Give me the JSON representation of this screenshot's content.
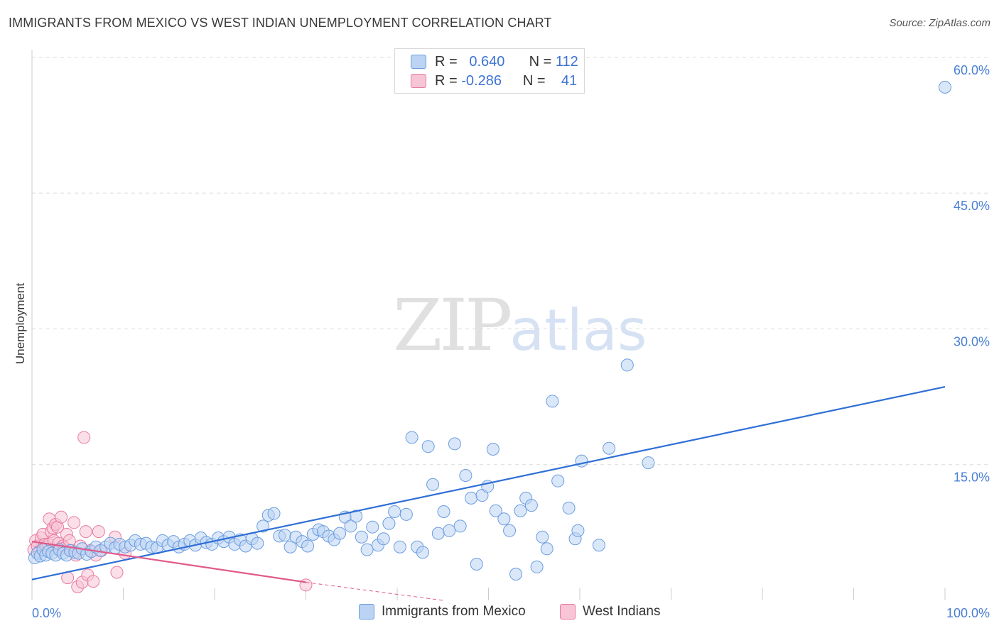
{
  "title": "IMMIGRANTS FROM MEXICO VS WEST INDIAN UNEMPLOYMENT CORRELATION CHART",
  "source": "Source: ZipAtlas.com",
  "watermark": {
    "zip": "ZIP",
    "atlas": "atlas"
  },
  "legend": {
    "rows": [
      {
        "r_label": "R =",
        "r_value": "0.640",
        "n_label": "N =",
        "n_value": "112"
      },
      {
        "r_label": "R =",
        "r_value": "-0.286",
        "n_label": "N =",
        "n_value": "41"
      }
    ]
  },
  "bottom_legend": {
    "mexico": "Immigrants from Mexico",
    "west_indians": "West Indians"
  },
  "colors": {
    "blue": "#6b9de0",
    "blue_fill": "#bcd3f3",
    "pink": "#e97aa0",
    "pink_fill": "#f7c5d6",
    "blue_line": "#2f6fd6",
    "pink_line": "#e05a8a"
  },
  "chart_data": {
    "type": "scatter",
    "xlabel": "",
    "ylabel": "Unemployment",
    "xlim": [
      0,
      100
    ],
    "ylim": [
      0,
      63
    ],
    "x_tick_labels": [
      "0.0%",
      "100.0%"
    ],
    "y_ticks": [
      15,
      30,
      45,
      60
    ],
    "y_tick_labels": [
      "15.0%",
      "30.0%",
      "45.0%",
      "60.0%"
    ],
    "series": [
      {
        "name": "Immigrants from Mexico",
        "trend": [
          [
            0,
            2.3
          ],
          [
            100,
            23.6
          ]
        ],
        "points": [
          [
            0.3,
            4.7
          ],
          [
            0.6,
            5.2
          ],
          [
            0.9,
            4.9
          ],
          [
            1.2,
            5.6
          ],
          [
            1.5,
            5.0
          ],
          [
            1.8,
            5.4
          ],
          [
            2.2,
            5.2
          ],
          [
            2.6,
            5.0
          ],
          [
            3.0,
            5.6
          ],
          [
            3.4,
            5.2
          ],
          [
            3.8,
            5.0
          ],
          [
            4.2,
            5.5
          ],
          [
            4.7,
            5.3
          ],
          [
            5.1,
            5.2
          ],
          [
            5.5,
            5.7
          ],
          [
            6.0,
            5.1
          ],
          [
            6.5,
            5.4
          ],
          [
            7.0,
            5.9
          ],
          [
            7.5,
            5.5
          ],
          [
            8.1,
            5.9
          ],
          [
            8.6,
            6.3
          ],
          [
            9.1,
            5.8
          ],
          [
            9.6,
            6.2
          ],
          [
            10.2,
            5.9
          ],
          [
            10.8,
            6.1
          ],
          [
            11.3,
            6.6
          ],
          [
            11.9,
            6.2
          ],
          [
            12.5,
            6.3
          ],
          [
            13.1,
            5.9
          ],
          [
            13.7,
            5.8
          ],
          [
            14.3,
            6.6
          ],
          [
            14.9,
            6.1
          ],
          [
            15.5,
            6.5
          ],
          [
            16.1,
            5.9
          ],
          [
            16.7,
            6.2
          ],
          [
            17.3,
            6.6
          ],
          [
            17.9,
            6.1
          ],
          [
            18.5,
            6.9
          ],
          [
            19.1,
            6.4
          ],
          [
            19.7,
            6.2
          ],
          [
            20.4,
            6.9
          ],
          [
            21.0,
            6.5
          ],
          [
            21.6,
            7.0
          ],
          [
            22.2,
            6.2
          ],
          [
            22.8,
            6.7
          ],
          [
            23.4,
            6.0
          ],
          [
            24.1,
            6.8
          ],
          [
            24.7,
            6.3
          ],
          [
            25.3,
            8.2
          ],
          [
            25.9,
            9.4
          ],
          [
            26.5,
            9.6
          ],
          [
            27.1,
            7.1
          ],
          [
            27.7,
            7.2
          ],
          [
            28.3,
            5.9
          ],
          [
            28.9,
            7.0
          ],
          [
            29.6,
            6.5
          ],
          [
            30.2,
            6.0
          ],
          [
            30.8,
            7.3
          ],
          [
            31.4,
            7.8
          ],
          [
            31.9,
            7.6
          ],
          [
            32.5,
            7.1
          ],
          [
            33.1,
            6.7
          ],
          [
            33.7,
            7.4
          ],
          [
            34.3,
            9.2
          ],
          [
            34.9,
            8.2
          ],
          [
            35.5,
            9.3
          ],
          [
            36.1,
            7.0
          ],
          [
            36.7,
            5.6
          ],
          [
            37.3,
            8.1
          ],
          [
            37.9,
            6.1
          ],
          [
            38.5,
            6.8
          ],
          [
            39.1,
            8.5
          ],
          [
            39.7,
            9.8
          ],
          [
            40.3,
            5.9
          ],
          [
            41.0,
            9.5
          ],
          [
            41.6,
            18.0
          ],
          [
            42.2,
            5.9
          ],
          [
            42.8,
            5.3
          ],
          [
            43.4,
            17.0
          ],
          [
            43.9,
            12.8
          ],
          [
            44.5,
            7.4
          ],
          [
            45.1,
            9.8
          ],
          [
            45.7,
            7.7
          ],
          [
            46.3,
            17.3
          ],
          [
            46.9,
            8.2
          ],
          [
            47.5,
            13.8
          ],
          [
            48.1,
            11.3
          ],
          [
            48.7,
            4.0
          ],
          [
            49.3,
            11.6
          ],
          [
            49.9,
            12.6
          ],
          [
            50.5,
            16.7
          ],
          [
            50.8,
            9.9
          ],
          [
            51.7,
            9.0
          ],
          [
            52.3,
            7.7
          ],
          [
            53.0,
            2.9
          ],
          [
            53.5,
            9.9
          ],
          [
            54.1,
            11.3
          ],
          [
            54.7,
            10.5
          ],
          [
            55.3,
            3.7
          ],
          [
            55.9,
            7.0
          ],
          [
            56.4,
            5.7
          ],
          [
            57.0,
            22.0
          ],
          [
            57.6,
            13.2
          ],
          [
            58.8,
            10.2
          ],
          [
            59.5,
            6.8
          ],
          [
            59.8,
            7.7
          ],
          [
            60.2,
            15.4
          ],
          [
            62.1,
            6.1
          ],
          [
            63.2,
            16.8
          ],
          [
            65.2,
            26.0
          ],
          [
            67.5,
            15.2
          ],
          [
            100.0,
            56.7
          ]
        ]
      },
      {
        "name": "West Indians",
        "trend": [
          [
            0,
            6.5
          ],
          [
            30,
            2.0
          ]
        ],
        "trend_dashed": [
          [
            30,
            2.0
          ],
          [
            45,
            0
          ]
        ],
        "points": [
          [
            0.2,
            5.6
          ],
          [
            0.4,
            6.6
          ],
          [
            0.6,
            6.0
          ],
          [
            0.8,
            5.4
          ],
          [
            1.0,
            6.9
          ],
          [
            1.2,
            7.3
          ],
          [
            1.4,
            6.2
          ],
          [
            1.6,
            5.9
          ],
          [
            1.8,
            6.2
          ],
          [
            1.9,
            9.0
          ],
          [
            2.1,
            7.6
          ],
          [
            2.3,
            8.0
          ],
          [
            2.4,
            6.6
          ],
          [
            2.6,
            8.4
          ],
          [
            2.8,
            8.1
          ],
          [
            2.9,
            6.3
          ],
          [
            3.1,
            5.7
          ],
          [
            3.2,
            9.2
          ],
          [
            3.4,
            6.0
          ],
          [
            3.6,
            5.8
          ],
          [
            3.8,
            7.3
          ],
          [
            3.9,
            2.5
          ],
          [
            4.1,
            6.6
          ],
          [
            4.3,
            5.5
          ],
          [
            4.6,
            8.6
          ],
          [
            4.8,
            5.0
          ],
          [
            5.0,
            1.5
          ],
          [
            5.3,
            6.0
          ],
          [
            5.5,
            2.0
          ],
          [
            5.7,
            18.0
          ],
          [
            5.9,
            7.6
          ],
          [
            6.1,
            2.8
          ],
          [
            6.4,
            5.5
          ],
          [
            6.7,
            2.1
          ],
          [
            7.0,
            5.0
          ],
          [
            7.3,
            7.6
          ],
          [
            7.6,
            5.5
          ],
          [
            9.1,
            7.0
          ],
          [
            9.3,
            3.1
          ],
          [
            10.2,
            5.2
          ],
          [
            30.0,
            1.7
          ]
        ]
      }
    ]
  }
}
